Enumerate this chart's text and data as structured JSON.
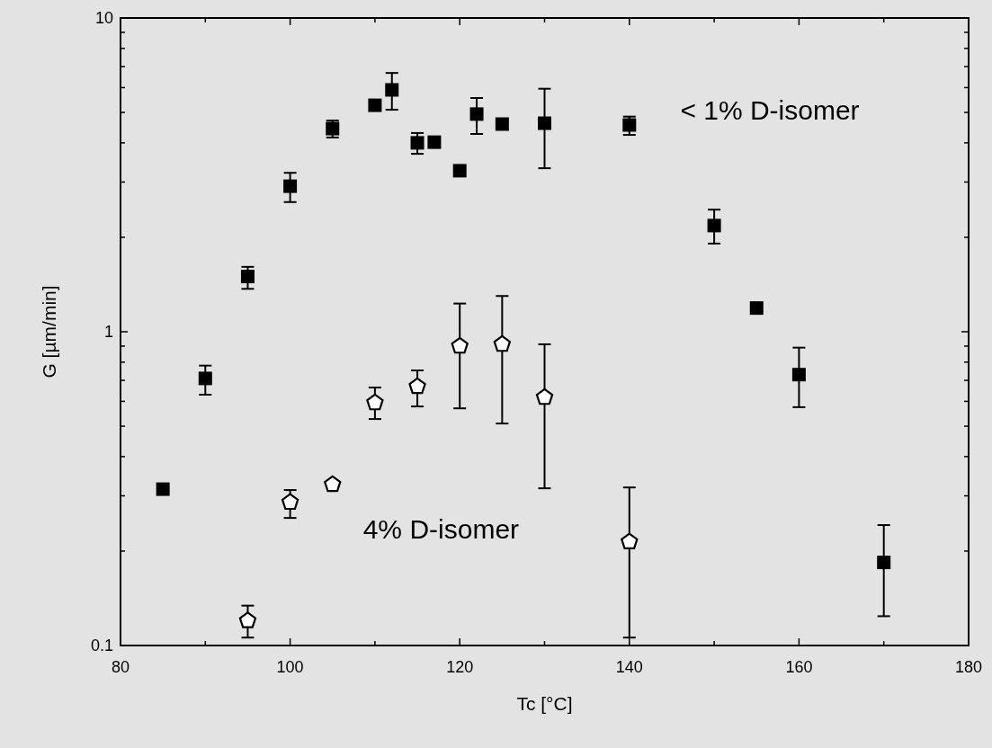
{
  "chart_data": {
    "type": "scatter",
    "xlabel": "Tc [°C]",
    "ylabel": "G [µm/min]",
    "xlim": [
      80,
      180
    ],
    "xticks": [
      80,
      100,
      120,
      140,
      160,
      180
    ],
    "ylim": [
      0.1,
      10
    ],
    "yticks": [
      0.1,
      1,
      10
    ],
    "log": "y",
    "grid": false,
    "series": [
      {
        "color": "#000000",
        "marker": "square",
        "x": [
          85,
          90,
          95,
          100,
          105,
          110,
          112,
          115,
          117,
          120,
          122,
          125,
          130,
          140,
          150,
          155,
          160,
          170
        ],
        "values": [
          0.315,
          0.71,
          1.5,
          2.91,
          4.44,
          5.27,
          5.9,
          4.0,
          4.02,
          3.26,
          4.94,
          4.59,
          4.62,
          4.56,
          2.18,
          1.19,
          0.73,
          0.184
        ],
        "errors": [
          null,
          [
            0.63,
            0.78
          ],
          [
            1.37,
            1.61
          ],
          [
            2.59,
            3.21
          ],
          [
            4.16,
            4.71
          ],
          null,
          [
            5.1,
            6.68
          ],
          [
            3.69,
            4.3
          ],
          null,
          null,
          [
            4.27,
            5.56
          ],
          null,
          [
            3.32,
            5.95
          ],
          [
            4.24,
            4.85
          ],
          [
            1.91,
            2.45
          ],
          null,
          [
            0.575,
            0.89
          ],
          [
            0.124,
            0.242
          ]
        ]
      },
      {
        "color": "#000000",
        "x": [
          95,
          100,
          105,
          110,
          115,
          120,
          125,
          130,
          140
        ],
        "values": [
          0.12,
          0.286,
          0.326,
          0.594,
          0.669,
          0.9,
          0.912,
          0.618,
          0.214
        ],
        "errors": [
          [
            0.106,
            0.134
          ],
          [
            0.255,
            0.313
          ],
          null,
          [
            0.527,
            0.664
          ],
          [
            0.578,
            0.753
          ],
          [
            0.57,
            1.23
          ],
          [
            0.51,
            1.3
          ],
          [
            0.317,
            0.912
          ],
          [
            0.106,
            0.319
          ]
        ]
      }
    ],
    "annotations": [
      "< 1% D-isomer",
      "4% D-isomer"
    ]
  }
}
